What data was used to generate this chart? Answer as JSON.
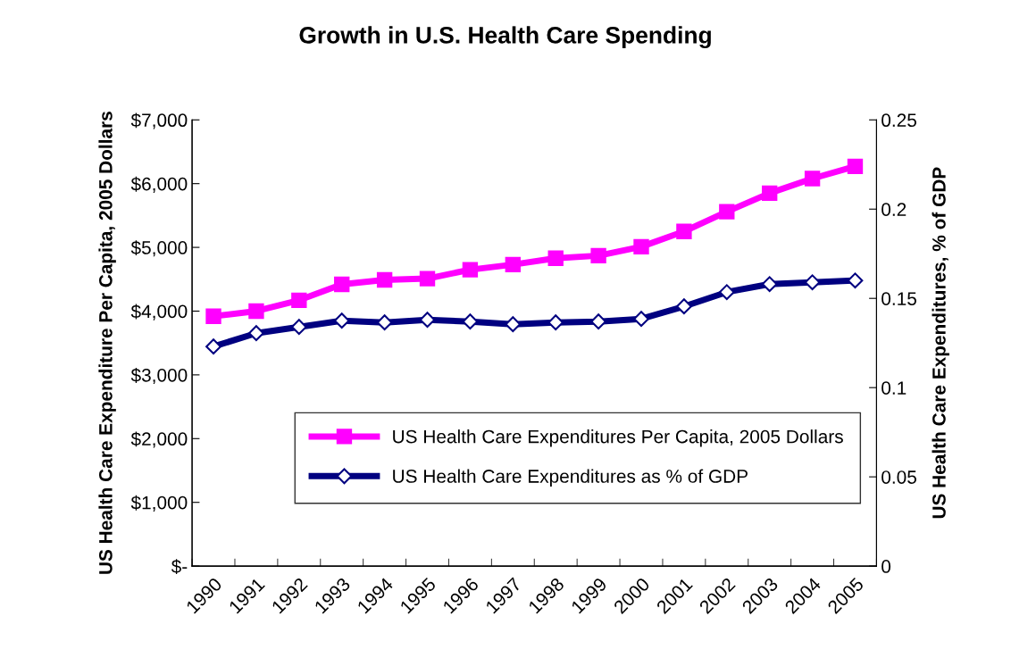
{
  "chart_data": {
    "type": "line",
    "title": "Growth in U.S. Health Care Spending",
    "ylabel": "US Health Care Expenditure Per Capita, 2005 Dollars",
    "y2label": "US Health Care Expenditures, % of GDP",
    "categories": [
      "1990",
      "1991",
      "1992",
      "1993",
      "1994",
      "1995",
      "1996",
      "1997",
      "1998",
      "1999",
      "2000",
      "2001",
      "2002",
      "2003",
      "2004",
      "2005"
    ],
    "series": [
      {
        "name": "US Health Care Expenditures Per Capita, 2005 Dollars",
        "color": "#ff00ff",
        "marker": "square",
        "values": [
          3920,
          4000,
          4170,
          4420,
          4490,
          4510,
          4650,
          4730,
          4830,
          4870,
          5010,
          5250,
          5560,
          5850,
          6080,
          6270
        ]
      },
      {
        "name": "US Health Care Expenditures as % of GDP",
        "color": "#000080",
        "marker": "diamond",
        "axis": "y2",
        "values": [
          0.123,
          0.1305,
          0.134,
          0.1375,
          0.1365,
          0.138,
          0.137,
          0.1355,
          0.1365,
          0.137,
          0.1385,
          0.1455,
          0.1535,
          0.158,
          0.159,
          0.16
        ]
      }
    ],
    "ylim": [
      0,
      7000
    ],
    "yticks": [
      {
        "value": 0,
        "label": "$-"
      },
      {
        "value": 1000,
        "label": "$1,000"
      },
      {
        "value": 2000,
        "label": "$2,000"
      },
      {
        "value": 3000,
        "label": "$3,000"
      },
      {
        "value": 4000,
        "label": "$4,000"
      },
      {
        "value": 5000,
        "label": "$5,000"
      },
      {
        "value": 6000,
        "label": "$6,000"
      },
      {
        "value": 7000,
        "label": "$7,000"
      }
    ],
    "y2lim": [
      0,
      0.25
    ],
    "y2ticks": [
      0,
      0.05,
      0.1,
      0.15,
      0.2,
      0.25
    ],
    "legend": "bottom right",
    "grid": false
  }
}
